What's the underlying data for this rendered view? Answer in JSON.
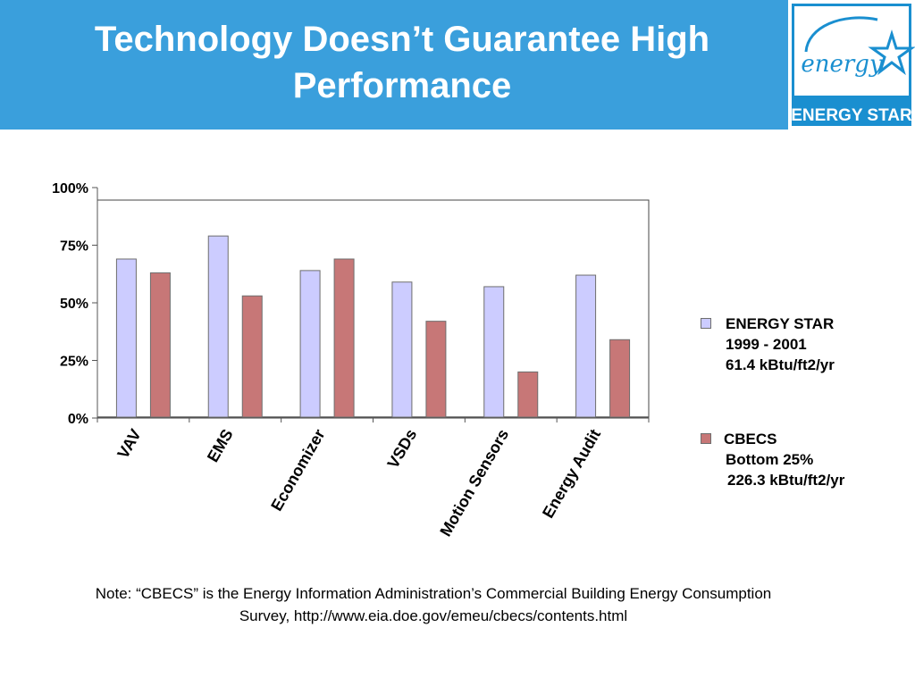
{
  "slide": {
    "title_line1": "Technology Doesn’t Guarantee High",
    "title_line2": "Performance",
    "logo": {
      "script_text": "energy",
      "caption": "ENERGY STAR",
      "icon": "energy-star-logo"
    },
    "note_line1": "Note: “CBECS” is the Energy Information Administration’s Commercial Building Energy Consumption",
    "note_line2": "Survey, http://www.eia.doe.gov/emeu/cbecs/contents.html"
  },
  "colors": {
    "header_bg": "#3a9fdc",
    "energy_star": "#ccccff",
    "cbecs": "#c77777",
    "logo_blue": "#1a8fd0"
  },
  "legend": {
    "energy_star": {
      "line1": "ENERGY STAR",
      "line2": "1999 - 2001",
      "line3": "61.4 kBtu/ft2/yr"
    },
    "cbecs": {
      "line1": "CBECS",
      "line2": "Bottom 25%",
      "line3": "226.3 kBtu/ft2/yr"
    }
  },
  "chart_data": {
    "type": "bar",
    "categories": [
      "VAV",
      "EMS",
      "Economizer",
      "VSDs",
      "Motion Sensors",
      "Energy Audit"
    ],
    "series": [
      {
        "name": "ENERGY STAR",
        "values": [
          69,
          79,
          64,
          59,
          57,
          62
        ]
      },
      {
        "name": "CBECS",
        "values": [
          63,
          53,
          69,
          42,
          20,
          34
        ]
      }
    ],
    "ylim": [
      0,
      100
    ],
    "yticks": [
      0,
      25,
      50,
      75,
      100
    ],
    "ytick_labels": [
      "0%",
      "25%",
      "50%",
      "75%",
      "100%"
    ],
    "xlabel": "",
    "ylabel": "",
    "title": "",
    "legend_position": "right",
    "grid": false
  }
}
